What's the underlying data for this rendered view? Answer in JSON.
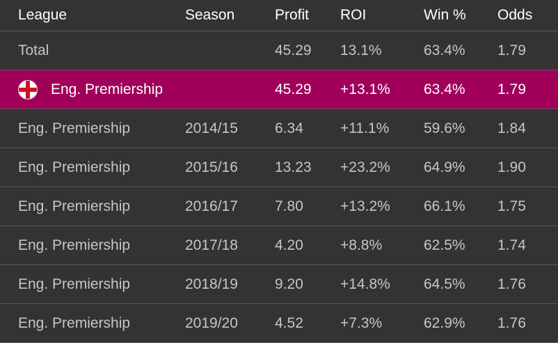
{
  "columns": {
    "league": "League",
    "season": "Season",
    "profit": "Profit",
    "roi": "ROI",
    "win_pct": "Win %",
    "odds": "Odds"
  },
  "total": {
    "league": "Total",
    "season": "",
    "profit": "45.29",
    "roi": "13.1%",
    "win_pct": "63.4%",
    "odds": "1.79"
  },
  "league_summary": {
    "flag": "england-flag-icon",
    "league": "Eng. Premiership",
    "season": "",
    "profit": "45.29",
    "roi": "+13.1%",
    "win_pct": "63.4%",
    "odds": "1.79",
    "highlight_color": "#a0005a"
  },
  "rows": [
    {
      "league": "Eng. Premiership",
      "season": "2014/15",
      "profit": "6.34",
      "roi": "+11.1%",
      "win_pct": "59.6%",
      "odds": "1.84"
    },
    {
      "league": "Eng. Premiership",
      "season": "2015/16",
      "profit": "13.23",
      "roi": "+23.2%",
      "win_pct": "64.9%",
      "odds": "1.90"
    },
    {
      "league": "Eng. Premiership",
      "season": "2016/17",
      "profit": "7.80",
      "roi": "+13.2%",
      "win_pct": "66.1%",
      "odds": "1.75"
    },
    {
      "league": "Eng. Premiership",
      "season": "2017/18",
      "profit": "4.20",
      "roi": "+8.8%",
      "win_pct": "62.5%",
      "odds": "1.74"
    },
    {
      "league": "Eng. Premiership",
      "season": "2018/19",
      "profit": "9.20",
      "roi": "+14.8%",
      "win_pct": "64.5%",
      "odds": "1.76"
    },
    {
      "league": "Eng. Premiership",
      "season": "2019/20",
      "profit": "4.52",
      "roi": "+7.3%",
      "win_pct": "62.9%",
      "odds": "1.76"
    }
  ]
}
